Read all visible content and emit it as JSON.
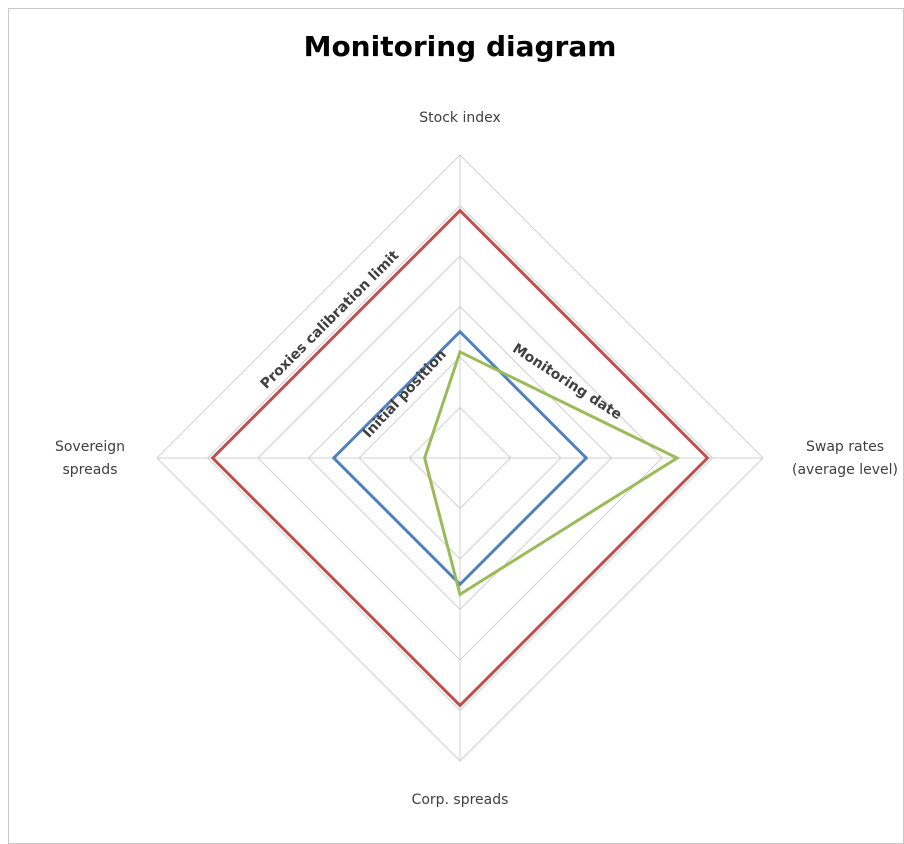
{
  "chart_data": {
    "type": "radar",
    "title": "Monitoring diagram",
    "categories": [
      "Stock index",
      "Swap rates\n(average level)",
      "Corp. spreads",
      "Sovereign\nspreads"
    ],
    "series": [
      {
        "name": "Proxies calibration limit",
        "color": "#c0504d",
        "values": [
          4.9,
          4.9,
          4.9,
          4.9
        ]
      },
      {
        "name": "Initial position",
        "color": "#4f81bd",
        "values": [
          2.5,
          2.5,
          2.5,
          2.5
        ]
      },
      {
        "name": "Monitoring date",
        "color": "#9bbb59",
        "values": [
          2.1,
          4.3,
          2.7,
          0.7
        ]
      }
    ],
    "rlim": [
      0,
      6
    ],
    "rticks": [
      1,
      2,
      3,
      4,
      5,
      6
    ],
    "grid": true
  }
}
